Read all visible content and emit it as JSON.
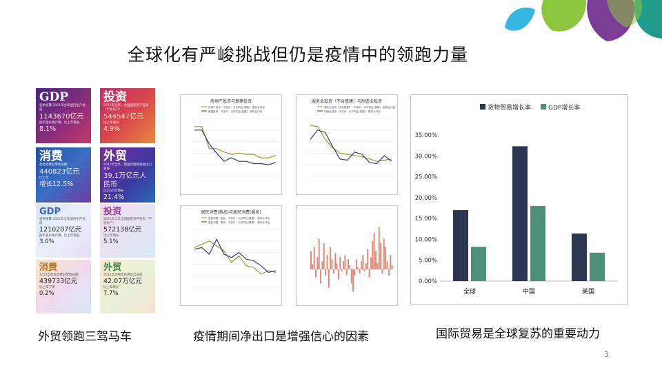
{
  "slide": {
    "title": "全球化有严峻挑战但仍是疫情中的领跑力量",
    "page_number": "3",
    "captions": [
      "外贸领跑三驾马车",
      "疫情期间净出口是增强信心的因素",
      "国际贸易是全球复苏的重要动力"
    ],
    "colors": {
      "accent_green": "#4e8f78",
      "accent_navy": "#2c3650",
      "deco_blue": "#35b7e4",
      "deco_green": "#8cc63f",
      "deco_purple": "#7a3c96",
      "deco_teal": "#1f9a8c"
    }
  },
  "tiles_2021": [
    {
      "head": "GDP",
      "sub": "初步核算 2021年全年国内生产总值",
      "value": "1143670亿元",
      "note": "按不变价格计算，比上年增长",
      "pct": "8.1%"
    },
    {
      "head": "投资",
      "sub": "2021年全年，全国固定资产投资（不含农户）",
      "value": "544547亿元",
      "note": "比上年增长",
      "pct": "4.9%"
    },
    {
      "head": "消费",
      "sub": "社会消费品零售总额",
      "value": "440823亿元",
      "note": "比上年",
      "pct": "增长12.5%"
    },
    {
      "head": "外贸",
      "sub": "2021年全年，我国货物贸易进出口总值",
      "value": "39.1万亿元人民币",
      "note": "比2020年增长",
      "pct": "21.4%"
    }
  ],
  "tiles_2022": [
    {
      "head": "GDP",
      "sub": "初步核算 2022年全年国内生产总值",
      "value": "1210207亿元",
      "note": "按不变价格计算，比上年增长",
      "pct": "3.0%"
    },
    {
      "head": "投资",
      "sub": "2022年全年全国固定资产投资（不含农户）",
      "value": "572138亿元",
      "note": "比上年增长",
      "pct": "5.1%"
    },
    {
      "head": "消费",
      "sub": "2022年社会消费品零售总额",
      "value": "439733亿元",
      "note": "比上年下降",
      "pct": "0.2%"
    },
    {
      "head": "外贸",
      "sub": "2022年货物贸易进出口总值",
      "value": "42.07万亿元",
      "note": "比上年增长",
      "pct": "7.7%"
    }
  ],
  "chart_data": [
    {
      "type": "bar",
      "title": "",
      "categories": [
        "全球",
        "中国",
        "美国"
      ],
      "series": [
        {
          "name": "货物贸易增长率",
          "color": "#2c3650",
          "values": [
            17.0,
            32.3,
            11.4
          ]
        },
        {
          "name": "GDP增长率",
          "color": "#4e8f78",
          "values": [
            8.2,
            18.0,
            6.8
          ]
        }
      ],
      "yticks": [
        "0.00%",
        "5.00%",
        "10.00%",
        "15.00%",
        "20.00%",
        "25.00%",
        "30.00%",
        "35.00%"
      ],
      "ylim": [
        0,
        35
      ],
      "legend": "top-left",
      "grid": false
    },
    {
      "type": "line",
      "title": "房地产投资与基建投资",
      "legend_labels": [
        "房地产投资：不变价：当月同比(重建)：服务业口径",
        "基建投资：不变价：当月同比(重建)：服务业口径"
      ],
      "series": [
        {
          "color": "#9a9a2c",
          "values": [
            33,
            33,
            14,
            14,
            11,
            9,
            10,
            9,
            9,
            6,
            6,
            8
          ]
        },
        {
          "color": "#2a3f66",
          "values": [
            30,
            30,
            18,
            10,
            3,
            6,
            3,
            3,
            1,
            1,
            0,
            2
          ]
        }
      ],
      "ylim": [
        -10,
        40
      ]
    },
    {
      "type": "line",
      "title": "服务业投资（不含基建）与制造业投资",
      "legend_labels": [
        "服务业投资（不含基建）：不变价：当月同比(重建)：服务业口径",
        "制造业投资：不变价：当月同比(重建)：服务业口径"
      ],
      "series": [
        {
          "color": "#9a9a2c",
          "values": [
            34,
            33,
            22,
            15,
            10,
            9,
            8,
            7,
            5,
            3,
            4,
            5
          ]
        },
        {
          "color": "#2a3f66",
          "values": [
            22,
            30,
            28,
            16,
            5,
            4,
            11,
            9,
            2,
            1,
            8,
            3
          ]
        }
      ],
      "ylim": [
        -10,
        40
      ]
    },
    {
      "type": "line",
      "title": "居民消费(商品)与居民消费(服务)",
      "legend_labels": [
        "居民消费：商品：不变价：当月同比(重建)：服务业口径",
        "居民消费：服务：不变价：当月同比(重建)：服务业口径"
      ],
      "series": [
        {
          "color": "#9a9a2c",
          "values": [
            19,
            21,
            23,
            20,
            17,
            10,
            14,
            8,
            7,
            3,
            5,
            4
          ]
        },
        {
          "color": "#2a3f66",
          "values": [
            18,
            19,
            15,
            24,
            15,
            13,
            16,
            12,
            11,
            8,
            4,
            5
          ]
        }
      ],
      "ylim": [
        -5,
        30
      ]
    },
    {
      "type": "area",
      "title": "",
      "series": [
        {
          "color": "#d9644c",
          "values": [
            18,
            5,
            22,
            -8,
            12,
            30,
            -14,
            8,
            26,
            -6,
            14,
            -18,
            22,
            10,
            -4,
            16,
            6,
            -10,
            12,
            -2,
            8,
            14,
            -6,
            10,
            4,
            -14,
            -22,
            -6,
            10,
            2,
            -4,
            8,
            14,
            -2,
            6,
            20,
            -8,
            12,
            28,
            36,
            18,
            6,
            42,
            26,
            -4,
            30,
            22,
            8,
            -6,
            14,
            4
          ]
        }
      ]
    }
  ]
}
